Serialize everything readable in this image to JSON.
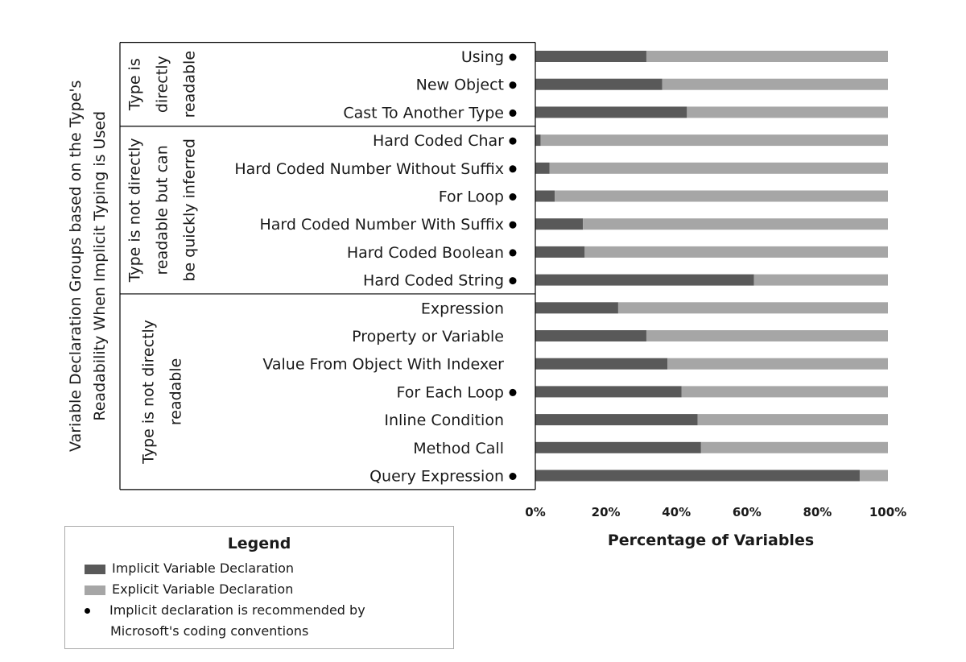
{
  "chart_data": {
    "type": "bar",
    "orientation": "horizontal",
    "stacked": true,
    "ylabel_lines": [
      "Variable Declaration Groups based on the Type's",
      "Readability When Implicit Typing is Used"
    ],
    "xlabel": "Percentage of Variables",
    "xlim": [
      0,
      100
    ],
    "xticks": [
      "0%",
      "20%",
      "40%",
      "60%",
      "80%",
      "100%"
    ],
    "grid": false,
    "groups": [
      {
        "label_lines": [
          "Type is",
          "directly",
          "readable"
        ],
        "items": [
          {
            "label": "Using",
            "dot": true,
            "implicit": 31.5
          },
          {
            "label": "New Object",
            "dot": true,
            "implicit": 36
          },
          {
            "label": "Cast To Another Type",
            "dot": true,
            "implicit": 43
          }
        ]
      },
      {
        "label_lines": [
          "Type is not directly",
          "readable but  can",
          "be quickly inferred"
        ],
        "items": [
          {
            "label": "Hard Coded Char",
            "dot": true,
            "implicit": 1.5
          },
          {
            "label": "Hard Coded Number Without Suffix",
            "dot": true,
            "implicit": 4
          },
          {
            "label": "For Loop",
            "dot": true,
            "implicit": 5.5
          },
          {
            "label": "Hard Coded Number With Suffix",
            "dot": true,
            "implicit": 13.5
          },
          {
            "label": "Hard Coded Boolean",
            "dot": true,
            "implicit": 14
          },
          {
            "label": "Hard Coded String",
            "dot": true,
            "implicit": 62
          }
        ]
      },
      {
        "label_lines": [
          "Type is not directly",
          "readable"
        ],
        "items": [
          {
            "label": "Expression",
            "dot": false,
            "implicit": 23.5
          },
          {
            "label": "Property or Variable",
            "dot": false,
            "implicit": 31.5
          },
          {
            "label": "Value From Object With Indexer",
            "dot": false,
            "implicit": 37.5
          },
          {
            "label": "For Each Loop",
            "dot": true,
            "implicit": 41.5
          },
          {
            "label": "Inline Condition",
            "dot": false,
            "implicit": 46
          },
          {
            "label": "Method Call",
            "dot": false,
            "implicit": 47
          },
          {
            "label": "Query Expression",
            "dot": true,
            "implicit": 92
          }
        ]
      }
    ],
    "series": [
      {
        "name": "Implicit Variable Declaration",
        "color": "#595959"
      },
      {
        "name": "Explicit Variable Declaration",
        "color": "#a6a6a6"
      }
    ]
  },
  "legend": {
    "title": "Legend",
    "implicit_label": "Implicit Variable Declaration",
    "explicit_label": "Explicit Variable Declaration",
    "dot_line1": "Implicit declaration is recommended by",
    "dot_line2": "Microsoft's coding conventions"
  }
}
